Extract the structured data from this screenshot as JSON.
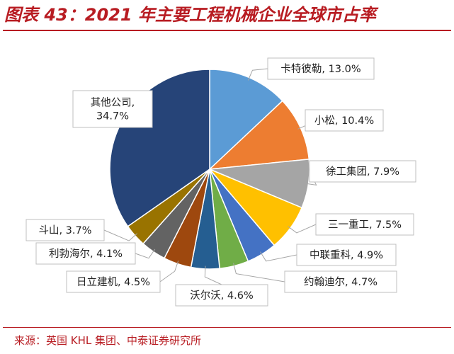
{
  "header": {
    "title": "图表 43：2021 年主要工程机械企业全球市占率"
  },
  "footer": {
    "source": "来源：英国 KHL 集团、中泰证券研究所"
  },
  "colors": {
    "title": "#b81c22",
    "slices": [
      "#5b9bd5",
      "#ed7d31",
      "#a5a5a5",
      "#ffc000",
      "#4472c4",
      "#70ad47",
      "#255e91",
      "#9e480e",
      "#636363",
      "#997300",
      "#264478"
    ]
  },
  "chart_data": {
    "type": "pie",
    "start_angle_deg": 0,
    "direction": "clockwise",
    "labels_position": "outside with leader lines",
    "legend": "none",
    "slices": [
      {
        "label": "卡特彼勒",
        "value": 13.0,
        "text": "卡特彼勒, 13.0%"
      },
      {
        "label": "小松",
        "value": 10.4,
        "text": "小松, 10.4%"
      },
      {
        "label": "徐工集团",
        "value": 7.9,
        "text": "徐工集团, 7.9%"
      },
      {
        "label": "三一重工",
        "value": 7.5,
        "text": "三一重工, 7.5%"
      },
      {
        "label": "中联重科",
        "value": 4.9,
        "text": "中联重科, 4.9%"
      },
      {
        "label": "约翰迪尔",
        "value": 4.7,
        "text": "约翰迪尔, 4.7%"
      },
      {
        "label": "沃尔沃",
        "value": 4.6,
        "text": "沃尔沃, 4.6%"
      },
      {
        "label": "日立建机",
        "value": 4.5,
        "text": "日立建机, 4.5%"
      },
      {
        "label": "利勃海尔",
        "value": 4.1,
        "text": "利勃海尔, 4.1%"
      },
      {
        "label": "斗山",
        "value": 3.7,
        "text": "斗山, 3.7%"
      },
      {
        "label": "其他公司",
        "value": 34.7,
        "text_lines": [
          "其他公司,",
          "34.7%"
        ]
      }
    ]
  }
}
